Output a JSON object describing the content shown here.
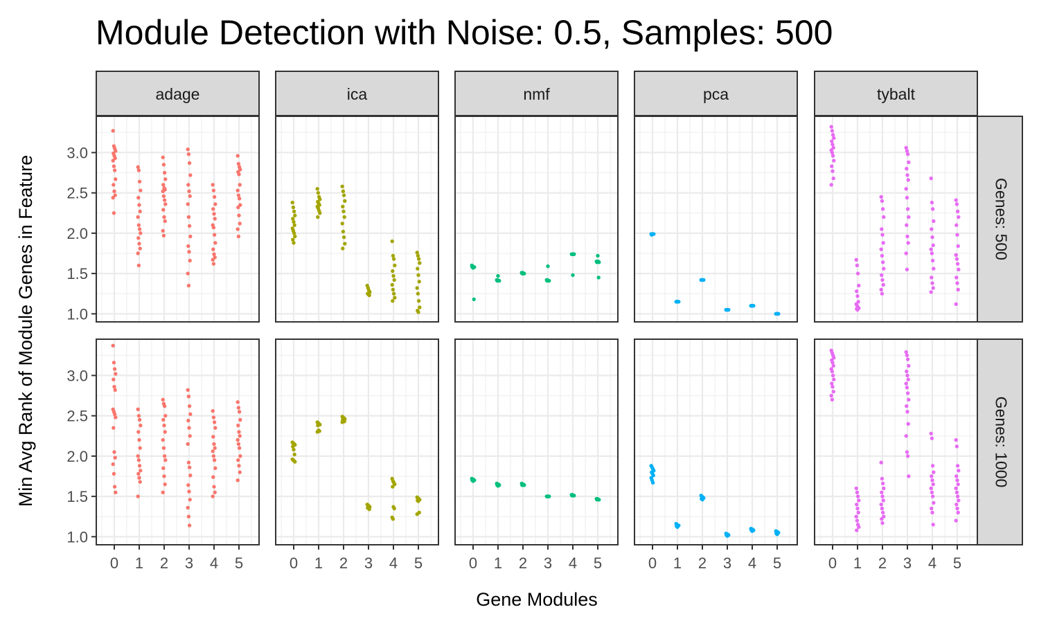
{
  "chart_data": {
    "type": "scatter",
    "title": "Module Detection with Noise: 0.5, Samples: 500",
    "xlabel": "Gene Modules",
    "ylabel": "Min Avg Rank of Module Genes in Feature",
    "x_categories": [
      "0",
      "1",
      "2",
      "3",
      "4",
      "5"
    ],
    "ylim": [
      0.9,
      3.45
    ],
    "yticks": [
      1.0,
      1.5,
      2.0,
      2.5,
      3.0
    ],
    "y_tick_labels": [
      "1.0",
      "1.5",
      "2.0",
      "2.5",
      "3.0"
    ],
    "grid": true,
    "legend": "none",
    "columns": [
      "adage",
      "ica",
      "nmf",
      "pca",
      "tybalt"
    ],
    "rows": [
      "Genes: 500",
      "Genes: 1000"
    ],
    "colors": {
      "adage": "#F8766D",
      "ica": "#A3A500",
      "nmf": "#00BF7D",
      "pca": "#00B0F6",
      "tybalt": "#E76BF3"
    },
    "panels": [
      {
        "method": "adage",
        "genes": "Genes: 500",
        "modules": [
          [
            3.27,
            3.08,
            3.05,
            3.02,
            2.99,
            2.96,
            2.93,
            2.9,
            2.83,
            2.78,
            2.67,
            2.6,
            2.52,
            2.47,
            2.44,
            2.25
          ],
          [
            2.82,
            2.78,
            2.64,
            2.53,
            2.44,
            2.35,
            2.27,
            2.2,
            2.1,
            2.05,
            2.0,
            1.94,
            1.87,
            1.81,
            1.75,
            1.6
          ],
          [
            2.94,
            2.85,
            2.75,
            2.67,
            2.6,
            2.56,
            2.54,
            2.52,
            2.46,
            2.41,
            2.36,
            2.29,
            2.2,
            2.15,
            2.03,
            1.97
          ],
          [
            3.04,
            2.98,
            2.87,
            2.72,
            2.6,
            2.52,
            2.46,
            2.36,
            2.2,
            2.09,
            1.96,
            1.84,
            1.77,
            1.66,
            1.5,
            1.35
          ],
          [
            2.6,
            2.53,
            2.45,
            2.36,
            2.3,
            2.24,
            2.18,
            2.1,
            2.07,
            1.98,
            1.88,
            1.8,
            1.74,
            1.7,
            1.67,
            1.62
          ],
          [
            2.96,
            2.86,
            2.82,
            2.79,
            2.76,
            2.73,
            2.6,
            2.53,
            2.47,
            2.43,
            2.35,
            2.32,
            2.22,
            2.12,
            2.05,
            1.96
          ]
        ]
      },
      {
        "method": "ica",
        "genes": "Genes: 500",
        "modules": [
          [
            2.38,
            2.32,
            2.27,
            2.22,
            2.18,
            2.14,
            2.1,
            2.06,
            2.03,
            2.0,
            1.96,
            1.92,
            1.88
          ],
          [
            2.55,
            2.5,
            2.45,
            2.42,
            2.39,
            2.37,
            2.35,
            2.33,
            2.31,
            2.28,
            2.25,
            2.2
          ],
          [
            2.58,
            2.52,
            2.47,
            2.4,
            2.33,
            2.27,
            2.2,
            2.12,
            2.02,
            1.95,
            1.87,
            1.81
          ],
          [
            1.35,
            1.32,
            1.29,
            1.27,
            1.25,
            1.24,
            1.23
          ],
          [
            1.9,
            1.72,
            1.68,
            1.6,
            1.53,
            1.47,
            1.42,
            1.36,
            1.3,
            1.25,
            1.2,
            1.16
          ],
          [
            1.76,
            1.72,
            1.68,
            1.63,
            1.56,
            1.48,
            1.4,
            1.32,
            1.25,
            1.16,
            1.08,
            1.04,
            1.02
          ]
        ]
      },
      {
        "method": "nmf",
        "genes": "Genes: 500",
        "modules": [
          [
            1.6,
            1.59,
            1.58,
            1.58,
            1.58,
            1.57,
            1.18
          ],
          [
            1.42,
            1.42,
            1.41,
            1.41,
            1.41,
            1.47
          ],
          [
            1.51,
            1.51,
            1.5,
            1.5,
            1.5,
            1.5
          ],
          [
            1.42,
            1.42,
            1.41,
            1.41,
            1.41,
            1.59
          ],
          [
            1.74,
            1.74,
            1.74,
            1.74,
            1.74,
            1.48
          ],
          [
            1.65,
            1.65,
            1.65,
            1.64,
            1.64,
            1.72,
            1.45
          ]
        ]
      },
      {
        "method": "pca",
        "genes": "Genes: 500",
        "modules": [
          [
            1.99,
            1.99,
            1.99,
            1.99,
            1.98
          ],
          [
            1.15,
            1.15,
            1.15,
            1.15,
            1.15
          ],
          [
            1.42,
            1.42,
            1.42,
            1.42,
            1.42
          ],
          [
            1.05,
            1.05,
            1.05,
            1.05,
            1.05
          ],
          [
            1.1,
            1.1,
            1.1,
            1.1,
            1.1
          ],
          [
            1.0,
            1.0,
            1.0,
            1.0,
            1.0
          ]
        ]
      },
      {
        "method": "tybalt",
        "genes": "Genes: 500",
        "modules": [
          [
            3.32,
            3.27,
            3.22,
            3.18,
            3.14,
            3.1,
            3.06,
            3.03,
            3.0,
            2.96,
            2.9,
            2.83,
            2.77,
            2.68,
            2.6
          ],
          [
            1.67,
            1.6,
            1.5,
            1.35,
            1.28,
            1.22,
            1.15,
            1.12,
            1.1,
            1.08,
            1.07,
            1.06,
            1.05
          ],
          [
            2.45,
            2.4,
            2.3,
            2.2,
            2.05,
            1.98,
            1.88,
            1.8,
            1.72,
            1.64,
            1.56,
            1.48,
            1.42,
            1.36,
            1.3,
            1.25
          ],
          [
            3.06,
            3.02,
            2.98,
            2.88,
            2.8,
            2.72,
            2.66,
            2.55,
            2.44,
            2.3,
            2.2,
            2.1,
            1.96,
            1.88,
            1.75,
            1.55
          ],
          [
            2.68,
            2.38,
            2.3,
            2.15,
            2.05,
            1.95,
            1.85,
            1.8,
            1.75,
            1.66,
            1.56,
            1.45,
            1.38,
            1.32,
            1.27
          ],
          [
            2.41,
            2.36,
            2.27,
            2.2,
            2.1,
            1.98,
            1.84,
            1.73,
            1.68,
            1.62,
            1.55,
            1.45,
            1.38,
            1.3,
            1.12
          ]
        ]
      },
      {
        "method": "adage",
        "genes": "Genes: 1000",
        "modules": [
          [
            3.37,
            3.16,
            3.08,
            3.02,
            2.95,
            2.86,
            2.82,
            2.58,
            2.55,
            2.52,
            2.48,
            2.35,
            2.05,
            1.98,
            1.9,
            1.78,
            1.62,
            1.55
          ],
          [
            2.58,
            2.5,
            2.45,
            2.38,
            2.3,
            2.2,
            2.1,
            2.0,
            1.95,
            1.88,
            1.82,
            1.78,
            1.73,
            1.68,
            1.5
          ],
          [
            2.7,
            2.65,
            2.62,
            2.5,
            2.45,
            2.38,
            2.3,
            2.2,
            2.1,
            2.0,
            1.95,
            1.85,
            1.75,
            1.65,
            1.55
          ],
          [
            2.82,
            2.74,
            2.62,
            2.52,
            2.44,
            2.35,
            2.25,
            2.15,
            1.92,
            1.86,
            1.76,
            1.64,
            1.56,
            1.46,
            1.36,
            1.25,
            1.14
          ],
          [
            2.56,
            2.48,
            2.42,
            2.35,
            2.24,
            2.15,
            2.1,
            2.06,
            2.0,
            1.95,
            1.85,
            1.74,
            1.62,
            1.55,
            1.5
          ],
          [
            2.67,
            2.6,
            2.55,
            2.45,
            2.38,
            2.3,
            2.25,
            2.2,
            2.15,
            2.1,
            2.0,
            1.95,
            1.88,
            1.8,
            1.7
          ]
        ]
      },
      {
        "method": "ica",
        "genes": "Genes: 1000",
        "modules": [
          [
            2.17,
            2.16,
            2.15,
            2.14,
            2.12,
            2.08,
            2.02,
            1.96,
            1.95,
            1.94,
            1.93
          ],
          [
            2.42,
            2.41,
            2.4,
            2.39,
            2.38,
            2.32,
            2.31,
            2.3
          ],
          [
            2.49,
            2.48,
            2.47,
            2.46,
            2.45,
            2.44,
            2.43,
            2.42
          ],
          [
            1.4,
            1.39,
            1.38,
            1.37,
            1.36,
            1.35,
            1.34
          ],
          [
            1.72,
            1.69,
            1.67,
            1.65,
            1.62,
            1.37,
            1.35,
            1.24,
            1.22
          ],
          [
            1.49,
            1.48,
            1.47,
            1.46,
            1.45,
            1.44,
            1.3,
            1.28
          ]
        ]
      },
      {
        "method": "nmf",
        "genes": "Genes: 1000",
        "modules": [
          [
            1.72,
            1.71,
            1.71,
            1.7,
            1.7,
            1.69
          ],
          [
            1.66,
            1.65,
            1.65,
            1.64,
            1.64,
            1.63
          ],
          [
            1.66,
            1.65,
            1.65,
            1.64,
            1.64,
            1.64
          ],
          [
            1.5,
            1.5,
            1.5,
            1.5,
            1.5
          ],
          [
            1.52,
            1.52,
            1.51,
            1.51,
            1.51
          ],
          [
            1.47,
            1.47,
            1.46,
            1.46,
            1.46
          ]
        ]
      },
      {
        "method": "pca",
        "genes": "Genes: 1000",
        "modules": [
          [
            1.88,
            1.86,
            1.84,
            1.82,
            1.8,
            1.78,
            1.76,
            1.73,
            1.7,
            1.67
          ],
          [
            1.16,
            1.15,
            1.14,
            1.14,
            1.13,
            1.12
          ],
          [
            1.51,
            1.5,
            1.49,
            1.48,
            1.47,
            1.46
          ],
          [
            1.04,
            1.03,
            1.03,
            1.02,
            1.02,
            1.01
          ],
          [
            1.1,
            1.09,
            1.09,
            1.08,
            1.08,
            1.07
          ],
          [
            1.07,
            1.06,
            1.06,
            1.05,
            1.04,
            1.03
          ]
        ]
      },
      {
        "method": "tybalt",
        "genes": "Genes: 1000",
        "modules": [
          [
            3.31,
            3.28,
            3.25,
            3.22,
            3.19,
            3.16,
            3.12,
            3.08,
            3.05,
            3.0,
            2.95,
            2.9,
            2.86,
            2.8,
            2.75,
            2.7
          ],
          [
            1.6,
            1.55,
            1.5,
            1.45,
            1.4,
            1.35,
            1.3,
            1.25,
            1.2,
            1.15,
            1.12,
            1.08
          ],
          [
            1.92,
            1.72,
            1.66,
            1.6,
            1.55,
            1.5,
            1.45,
            1.4,
            1.35,
            1.3,
            1.25,
            1.22,
            1.17
          ],
          [
            3.29,
            3.25,
            3.2,
            3.12,
            3.05,
            3.0,
            2.95,
            2.9,
            2.85,
            2.78,
            2.7,
            2.62,
            2.55,
            2.4,
            2.25,
            2.05,
            2.0,
            1.75
          ],
          [
            2.28,
            2.22,
            1.88,
            1.8,
            1.75,
            1.7,
            1.65,
            1.6,
            1.55,
            1.5,
            1.42,
            1.35,
            1.3,
            1.15
          ],
          [
            2.2,
            2.12,
            1.88,
            1.82,
            1.75,
            1.7,
            1.65,
            1.6,
            1.55,
            1.5,
            1.45,
            1.4,
            1.35,
            1.3,
            1.2
          ]
        ]
      }
    ]
  }
}
